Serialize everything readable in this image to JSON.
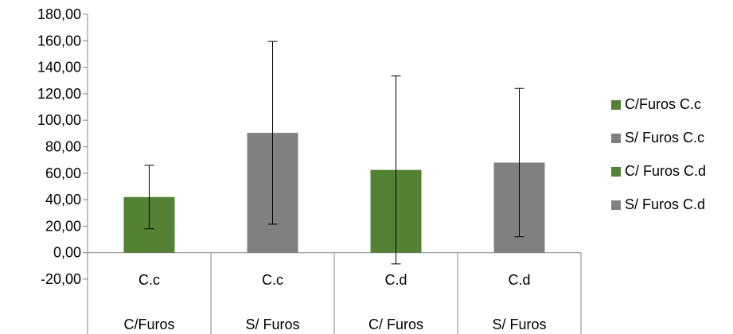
{
  "chart_data": {
    "type": "bar",
    "title": "",
    "xlabel": "",
    "ylabel": "",
    "ylim": [
      -20,
      180
    ],
    "ytick_step": 20,
    "y_tick_labels": [
      "-20,00",
      "0,00",
      "20,00",
      "40,00",
      "60,00",
      "80,00",
      "100,00",
      "120,00",
      "140,00",
      "160,00",
      "180,00"
    ],
    "grid": false,
    "legend_position": "right",
    "categories": [
      {
        "level1": "C.c",
        "level2": "C/Furos"
      },
      {
        "level1": "C.c",
        "level2": "S/ Furos"
      },
      {
        "level1": "C.d",
        "level2": "C/ Furos"
      },
      {
        "level1": "C.d",
        "level2": "S/ Furos"
      }
    ],
    "series": [
      {
        "name": "C/Furos C.c",
        "color": "#548235",
        "index": 0,
        "value": 42,
        "error": 24
      },
      {
        "name": "S/ Furos C.c",
        "color": "#808080",
        "index": 1,
        "value": 90.5,
        "error": 69
      },
      {
        "name": "C/ Furos C.d",
        "color": "#548235",
        "index": 2,
        "value": 62.5,
        "error": 71
      },
      {
        "name": "S/ Furos C.d",
        "color": "#808080",
        "index": 3,
        "value": 68,
        "error": 56
      }
    ]
  }
}
